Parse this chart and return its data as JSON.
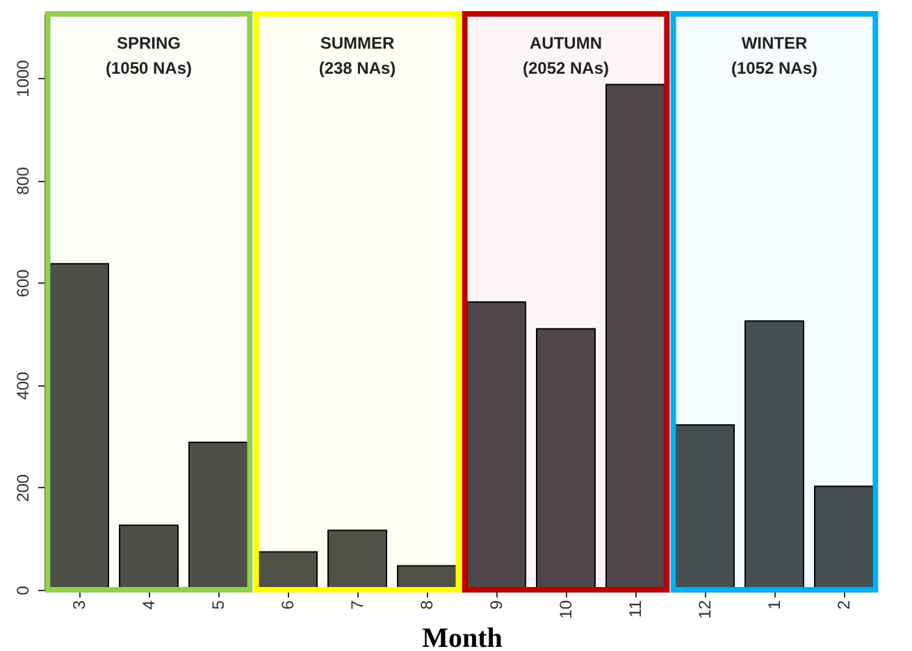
{
  "chart_data": {
    "type": "bar",
    "xlabel": "Month",
    "categories": [
      "3",
      "4",
      "5",
      "6",
      "7",
      "8",
      "9",
      "10",
      "11",
      "12",
      "1",
      "2"
    ],
    "values": [
      637,
      126,
      288,
      74,
      116,
      47,
      562,
      510,
      987,
      322,
      525,
      202
    ],
    "color": "#4a4a4a",
    "ylim": [
      0,
      1125
    ],
    "yticks": [
      0,
      200,
      400,
      600,
      800,
      1000
    ],
    "grid": false,
    "bands": [
      {
        "axis": "x",
        "from": "3",
        "to": "5",
        "label": "SPRING\n(1050 NAs)",
        "color": "#92d050"
      },
      {
        "axis": "x",
        "from": "6",
        "to": "8",
        "label": "SUMMER\n(238 NAs)",
        "color": "#ffff00"
      },
      {
        "axis": "x",
        "from": "9",
        "to": "11",
        "label": "AUTUMN\n(2052 NAs)",
        "color": "#c00000"
      },
      {
        "axis": "x",
        "from": "12",
        "to": "2",
        "label": "WINTER\n(1052 NAs)",
        "color": "#00b0f0"
      }
    ]
  }
}
